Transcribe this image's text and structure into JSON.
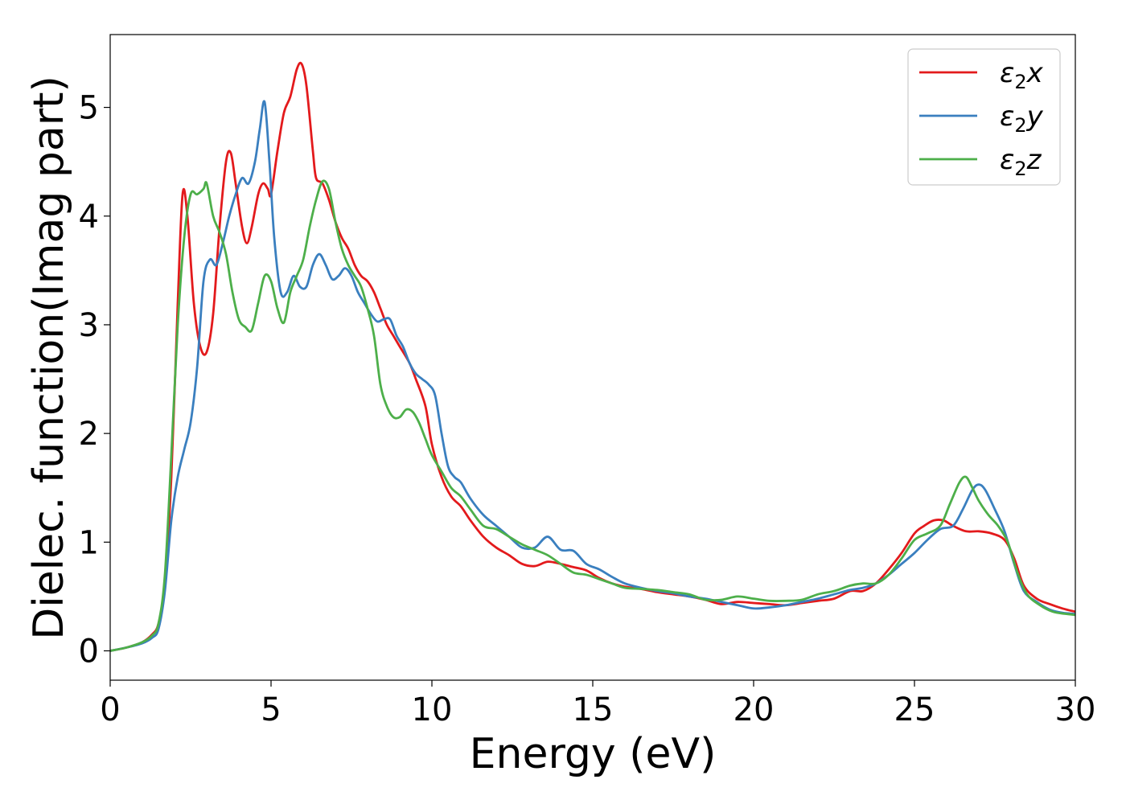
{
  "chart_data": {
    "type": "line",
    "xlabel": "Energy (eV)",
    "ylabel": "Dielec. function(Imag part)",
    "xlim": [
      0,
      30
    ],
    "ylim": [
      -0.27,
      5.67
    ],
    "xticks": [
      0,
      5,
      10,
      15,
      20,
      25,
      30
    ],
    "xtick_labels": [
      "0",
      "5",
      "10",
      "15",
      "20",
      "25",
      "30"
    ],
    "yticks": [
      0,
      1,
      2,
      3,
      4,
      5
    ],
    "ytick_labels": [
      "0",
      "1",
      "2",
      "3",
      "4",
      "5"
    ],
    "grid": false,
    "legend_position": "top-right",
    "series": [
      {
        "name": "ε₂x",
        "legend_base": "ε",
        "legend_sub": "2",
        "legend_suffix": "x",
        "color": "#e31a1c",
        "points": [
          [
            0,
            0
          ],
          [
            0.5,
            0.03
          ],
          [
            1.0,
            0.08
          ],
          [
            1.3,
            0.15
          ],
          [
            1.5,
            0.25
          ],
          [
            1.7,
            0.6
          ],
          [
            1.9,
            1.6
          ],
          [
            2.1,
            3.2
          ],
          [
            2.25,
            4.2
          ],
          [
            2.4,
            4.0
          ],
          [
            2.6,
            3.2
          ],
          [
            2.8,
            2.8
          ],
          [
            3.0,
            2.75
          ],
          [
            3.2,
            3.1
          ],
          [
            3.4,
            3.9
          ],
          [
            3.6,
            4.5
          ],
          [
            3.75,
            4.58
          ],
          [
            3.9,
            4.3
          ],
          [
            4.1,
            3.9
          ],
          [
            4.25,
            3.75
          ],
          [
            4.4,
            3.9
          ],
          [
            4.6,
            4.2
          ],
          [
            4.75,
            4.3
          ],
          [
            4.9,
            4.25
          ],
          [
            5.0,
            4.2
          ],
          [
            5.2,
            4.6
          ],
          [
            5.4,
            4.95
          ],
          [
            5.6,
            5.1
          ],
          [
            5.8,
            5.35
          ],
          [
            5.95,
            5.4
          ],
          [
            6.1,
            5.2
          ],
          [
            6.3,
            4.6
          ],
          [
            6.4,
            4.35
          ],
          [
            6.6,
            4.3
          ],
          [
            6.8,
            4.15
          ],
          [
            7.0,
            3.95
          ],
          [
            7.2,
            3.8
          ],
          [
            7.4,
            3.7
          ],
          [
            7.6,
            3.55
          ],
          [
            7.8,
            3.45
          ],
          [
            8.0,
            3.4
          ],
          [
            8.2,
            3.3
          ],
          [
            8.4,
            3.15
          ],
          [
            8.6,
            3.0
          ],
          [
            8.8,
            2.9
          ],
          [
            9.0,
            2.8
          ],
          [
            9.3,
            2.65
          ],
          [
            9.5,
            2.5
          ],
          [
            9.8,
            2.25
          ],
          [
            10.0,
            1.9
          ],
          [
            10.3,
            1.6
          ],
          [
            10.6,
            1.42
          ],
          [
            10.9,
            1.33
          ],
          [
            11.2,
            1.2
          ],
          [
            11.6,
            1.05
          ],
          [
            12.0,
            0.95
          ],
          [
            12.4,
            0.88
          ],
          [
            12.8,
            0.8
          ],
          [
            13.2,
            0.78
          ],
          [
            13.6,
            0.82
          ],
          [
            14.0,
            0.8
          ],
          [
            14.4,
            0.77
          ],
          [
            14.8,
            0.74
          ],
          [
            15.2,
            0.67
          ],
          [
            15.6,
            0.62
          ],
          [
            16.0,
            0.59
          ],
          [
            16.5,
            0.57
          ],
          [
            17.0,
            0.54
          ],
          [
            17.5,
            0.52
          ],
          [
            18.0,
            0.5
          ],
          [
            18.5,
            0.47
          ],
          [
            19.0,
            0.43
          ],
          [
            19.5,
            0.45
          ],
          [
            20.0,
            0.44
          ],
          [
            20.5,
            0.43
          ],
          [
            21.0,
            0.42
          ],
          [
            21.5,
            0.44
          ],
          [
            22.0,
            0.46
          ],
          [
            22.5,
            0.48
          ],
          [
            23.0,
            0.55
          ],
          [
            23.4,
            0.55
          ],
          [
            23.8,
            0.62
          ],
          [
            24.2,
            0.75
          ],
          [
            24.6,
            0.9
          ],
          [
            25.0,
            1.08
          ],
          [
            25.3,
            1.15
          ],
          [
            25.6,
            1.2
          ],
          [
            25.9,
            1.2
          ],
          [
            26.2,
            1.15
          ],
          [
            26.6,
            1.1
          ],
          [
            27.0,
            1.1
          ],
          [
            27.4,
            1.08
          ],
          [
            27.8,
            1.02
          ],
          [
            28.1,
            0.85
          ],
          [
            28.4,
            0.6
          ],
          [
            28.8,
            0.48
          ],
          [
            29.2,
            0.43
          ],
          [
            29.6,
            0.39
          ],
          [
            30.0,
            0.36
          ]
        ]
      },
      {
        "name": "ε₂y",
        "legend_base": "ε",
        "legend_sub": "2",
        "legend_suffix": "y",
        "color": "#3a7fbf",
        "points": [
          [
            0,
            0
          ],
          [
            0.5,
            0.03
          ],
          [
            1.0,
            0.07
          ],
          [
            1.3,
            0.12
          ],
          [
            1.5,
            0.2
          ],
          [
            1.7,
            0.55
          ],
          [
            1.9,
            1.2
          ],
          [
            2.1,
            1.6
          ],
          [
            2.3,
            1.85
          ],
          [
            2.5,
            2.1
          ],
          [
            2.7,
            2.6
          ],
          [
            2.9,
            3.4
          ],
          [
            3.1,
            3.6
          ],
          [
            3.3,
            3.55
          ],
          [
            3.5,
            3.75
          ],
          [
            3.7,
            4.0
          ],
          [
            3.9,
            4.2
          ],
          [
            4.1,
            4.35
          ],
          [
            4.3,
            4.3
          ],
          [
            4.5,
            4.5
          ],
          [
            4.65,
            4.8
          ],
          [
            4.8,
            5.05
          ],
          [
            4.95,
            4.5
          ],
          [
            5.1,
            3.8
          ],
          [
            5.3,
            3.3
          ],
          [
            5.5,
            3.3
          ],
          [
            5.7,
            3.45
          ],
          [
            5.9,
            3.35
          ],
          [
            6.1,
            3.35
          ],
          [
            6.3,
            3.55
          ],
          [
            6.5,
            3.65
          ],
          [
            6.7,
            3.55
          ],
          [
            6.9,
            3.42
          ],
          [
            7.1,
            3.45
          ],
          [
            7.3,
            3.52
          ],
          [
            7.5,
            3.45
          ],
          [
            7.7,
            3.3
          ],
          [
            7.9,
            3.2
          ],
          [
            8.1,
            3.1
          ],
          [
            8.3,
            3.03
          ],
          [
            8.5,
            3.05
          ],
          [
            8.7,
            3.05
          ],
          [
            8.9,
            2.9
          ],
          [
            9.1,
            2.8
          ],
          [
            9.3,
            2.65
          ],
          [
            9.5,
            2.55
          ],
          [
            9.7,
            2.5
          ],
          [
            9.9,
            2.45
          ],
          [
            10.1,
            2.35
          ],
          [
            10.3,
            2.0
          ],
          [
            10.5,
            1.7
          ],
          [
            10.7,
            1.6
          ],
          [
            10.9,
            1.55
          ],
          [
            11.2,
            1.4
          ],
          [
            11.6,
            1.25
          ],
          [
            12.0,
            1.15
          ],
          [
            12.4,
            1.05
          ],
          [
            12.8,
            0.95
          ],
          [
            13.2,
            0.95
          ],
          [
            13.6,
            1.05
          ],
          [
            14.0,
            0.93
          ],
          [
            14.4,
            0.92
          ],
          [
            14.8,
            0.8
          ],
          [
            15.2,
            0.75
          ],
          [
            15.6,
            0.68
          ],
          [
            16.0,
            0.62
          ],
          [
            16.5,
            0.58
          ],
          [
            17.0,
            0.55
          ],
          [
            17.5,
            0.53
          ],
          [
            18.0,
            0.5
          ],
          [
            18.5,
            0.48
          ],
          [
            19.0,
            0.45
          ],
          [
            19.5,
            0.42
          ],
          [
            20.0,
            0.39
          ],
          [
            20.5,
            0.4
          ],
          [
            21.0,
            0.42
          ],
          [
            21.5,
            0.45
          ],
          [
            22.0,
            0.48
          ],
          [
            22.5,
            0.52
          ],
          [
            23.0,
            0.56
          ],
          [
            23.4,
            0.58
          ],
          [
            23.8,
            0.62
          ],
          [
            24.2,
            0.7
          ],
          [
            24.6,
            0.8
          ],
          [
            25.0,
            0.9
          ],
          [
            25.4,
            1.02
          ],
          [
            25.8,
            1.12
          ],
          [
            26.2,
            1.15
          ],
          [
            26.5,
            1.3
          ],
          [
            26.8,
            1.48
          ],
          [
            27.0,
            1.53
          ],
          [
            27.2,
            1.48
          ],
          [
            27.5,
            1.3
          ],
          [
            27.8,
            1.1
          ],
          [
            28.1,
            0.8
          ],
          [
            28.4,
            0.55
          ],
          [
            28.8,
            0.45
          ],
          [
            29.2,
            0.38
          ],
          [
            29.6,
            0.35
          ],
          [
            30.0,
            0.34
          ]
        ]
      },
      {
        "name": "ε₂z",
        "legend_base": "ε",
        "legend_sub": "2",
        "legend_suffix": "z",
        "color": "#4daf4a",
        "points": [
          [
            0,
            0
          ],
          [
            0.5,
            0.03
          ],
          [
            1.0,
            0.08
          ],
          [
            1.3,
            0.14
          ],
          [
            1.5,
            0.25
          ],
          [
            1.7,
            0.7
          ],
          [
            1.9,
            1.8
          ],
          [
            2.1,
            3.0
          ],
          [
            2.3,
            3.8
          ],
          [
            2.5,
            4.2
          ],
          [
            2.7,
            4.2
          ],
          [
            2.9,
            4.25
          ],
          [
            3.0,
            4.3
          ],
          [
            3.2,
            4.0
          ],
          [
            3.4,
            3.85
          ],
          [
            3.6,
            3.65
          ],
          [
            3.8,
            3.3
          ],
          [
            4.0,
            3.05
          ],
          [
            4.2,
            2.98
          ],
          [
            4.4,
            2.95
          ],
          [
            4.6,
            3.2
          ],
          [
            4.8,
            3.45
          ],
          [
            5.0,
            3.4
          ],
          [
            5.2,
            3.15
          ],
          [
            5.4,
            3.02
          ],
          [
            5.6,
            3.3
          ],
          [
            5.8,
            3.45
          ],
          [
            6.0,
            3.6
          ],
          [
            6.2,
            3.9
          ],
          [
            6.4,
            4.15
          ],
          [
            6.6,
            4.32
          ],
          [
            6.8,
            4.25
          ],
          [
            7.0,
            3.95
          ],
          [
            7.2,
            3.7
          ],
          [
            7.4,
            3.55
          ],
          [
            7.6,
            3.45
          ],
          [
            7.8,
            3.35
          ],
          [
            8.0,
            3.15
          ],
          [
            8.2,
            2.9
          ],
          [
            8.4,
            2.45
          ],
          [
            8.6,
            2.25
          ],
          [
            8.8,
            2.15
          ],
          [
            9.0,
            2.15
          ],
          [
            9.2,
            2.22
          ],
          [
            9.4,
            2.2
          ],
          [
            9.6,
            2.1
          ],
          [
            9.8,
            1.95
          ],
          [
            10.0,
            1.8
          ],
          [
            10.3,
            1.65
          ],
          [
            10.6,
            1.5
          ],
          [
            10.9,
            1.42
          ],
          [
            11.2,
            1.3
          ],
          [
            11.6,
            1.15
          ],
          [
            12.0,
            1.12
          ],
          [
            12.4,
            1.05
          ],
          [
            12.8,
            0.98
          ],
          [
            13.2,
            0.93
          ],
          [
            13.6,
            0.88
          ],
          [
            14.0,
            0.8
          ],
          [
            14.4,
            0.72
          ],
          [
            14.8,
            0.7
          ],
          [
            15.2,
            0.66
          ],
          [
            15.6,
            0.62
          ],
          [
            16.0,
            0.58
          ],
          [
            16.5,
            0.57
          ],
          [
            17.0,
            0.56
          ],
          [
            17.5,
            0.54
          ],
          [
            18.0,
            0.52
          ],
          [
            18.5,
            0.47
          ],
          [
            19.0,
            0.47
          ],
          [
            19.5,
            0.5
          ],
          [
            20.0,
            0.48
          ],
          [
            20.5,
            0.46
          ],
          [
            21.0,
            0.46
          ],
          [
            21.5,
            0.47
          ],
          [
            22.0,
            0.52
          ],
          [
            22.5,
            0.55
          ],
          [
            23.0,
            0.6
          ],
          [
            23.4,
            0.62
          ],
          [
            23.8,
            0.62
          ],
          [
            24.2,
            0.7
          ],
          [
            24.6,
            0.85
          ],
          [
            25.0,
            1.02
          ],
          [
            25.4,
            1.08
          ],
          [
            25.8,
            1.15
          ],
          [
            26.1,
            1.35
          ],
          [
            26.4,
            1.55
          ],
          [
            26.6,
            1.6
          ],
          [
            26.8,
            1.5
          ],
          [
            27.0,
            1.38
          ],
          [
            27.3,
            1.25
          ],
          [
            27.6,
            1.15
          ],
          [
            27.9,
            1.0
          ],
          [
            28.2,
            0.72
          ],
          [
            28.5,
            0.52
          ],
          [
            28.9,
            0.42
          ],
          [
            29.3,
            0.36
          ],
          [
            29.7,
            0.34
          ],
          [
            30.0,
            0.33
          ]
        ]
      }
    ]
  }
}
